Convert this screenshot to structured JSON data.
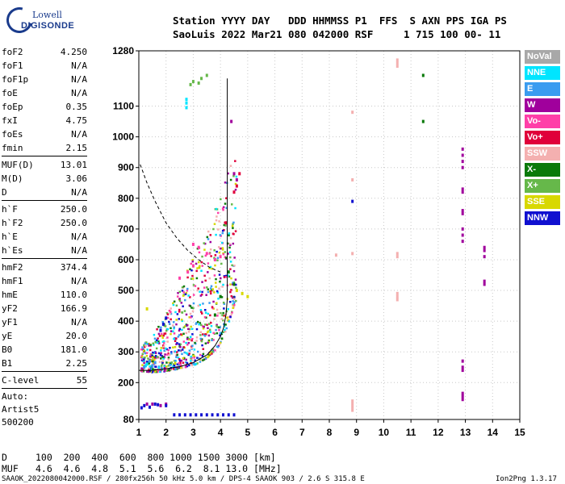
{
  "logo": {
    "line1": "Lowell",
    "line2": "DIGISONDE"
  },
  "header": {
    "line1": "Station YYYY DAY   DDD HHMMSS P1  FFS  S AXN PPS IGA PS",
    "line2": "SaoLuis 2022 Mar21 080 042000 RSF     1 715 100 00- 11"
  },
  "params": {
    "group1": [
      {
        "label": "foF2",
        "value": "4.250"
      },
      {
        "label": "foF1",
        "value": "N/A"
      },
      {
        "label": "foF1p",
        "value": "N/A"
      },
      {
        "label": "foE",
        "value": "N/A"
      },
      {
        "label": "foEp",
        "value": "0.35"
      },
      {
        "label": "fxI",
        "value": "4.75"
      },
      {
        "label": "foEs",
        "value": "N/A"
      },
      {
        "label": "fmin",
        "value": "2.15"
      }
    ],
    "group2": [
      {
        "label": "MUF(D)",
        "value": "13.01"
      },
      {
        "label": "M(D)",
        "value": "3.06"
      },
      {
        "label": "D",
        "value": "N/A"
      }
    ],
    "group3": [
      {
        "label": "h`F",
        "value": "250.0"
      },
      {
        "label": "h`F2",
        "value": "250.0"
      },
      {
        "label": "h`E",
        "value": "N/A"
      },
      {
        "label": "h`Es",
        "value": "N/A"
      }
    ],
    "group4": [
      {
        "label": "hmF2",
        "value": "374.4"
      },
      {
        "label": "hmF1",
        "value": "N/A"
      },
      {
        "label": "hmE",
        "value": "110.0"
      },
      {
        "label": "yF2",
        "value": "166.9"
      },
      {
        "label": "yF1",
        "value": "N/A"
      },
      {
        "label": "yE",
        "value": "20.0"
      },
      {
        "label": "B0",
        "value": "181.0"
      },
      {
        "label": "B1",
        "value": "2.25"
      }
    ],
    "group5": [
      {
        "label": "C-level",
        "value": "55"
      }
    ],
    "auto": [
      "Auto:",
      "Artist5",
      "500200"
    ]
  },
  "legend": [
    {
      "label": "NoVal",
      "color": "#a8a8a8"
    },
    {
      "label": "NNE",
      "color": "#00e5ff"
    },
    {
      "label": "E",
      "color": "#3a9cf0"
    },
    {
      "label": "W",
      "color": "#a0009c"
    },
    {
      "label": "Vo-",
      "color": "#ff3fa8"
    },
    {
      "label": "Vo+",
      "color": "#e0003a"
    },
    {
      "label": "SSW",
      "color": "#f4b0b0"
    },
    {
      "label": "X-",
      "color": "#0a7a0a"
    },
    {
      "label": "X+",
      "color": "#66b84a"
    },
    {
      "label": "SSE",
      "color": "#d8d800"
    },
    {
      "label": "NNW",
      "color": "#1010d0"
    }
  ],
  "bottom": {
    "d_label": "D",
    "d_values": "100  200  400  600  800 1000 1500 3000 [km]",
    "muf_label": "MUF",
    "muf_values": "4.6  4.6  4.8  5.1  5.6  6.2  8.1 13.0 [MHz]",
    "footer_left": "SAAOK_2022080042000.RSF / 280fx256h 50 kHz 5.0 km / DPS-4 SAAOK 903 / 2.6 S 315.8 E",
    "footer_right": "Ion2Png 1.3.17"
  },
  "chart_data": {
    "type": "scatter",
    "xlim": [
      1,
      15
    ],
    "ylim": [
      80,
      1280
    ],
    "x_ticks": [
      1,
      2,
      3,
      4,
      5,
      6,
      7,
      8,
      9,
      10,
      11,
      12,
      13,
      14,
      15
    ],
    "y_ticks": [
      80,
      200,
      300,
      400,
      500,
      600,
      700,
      800,
      900,
      1000,
      1100,
      1280
    ],
    "grid": true,
    "series": [
      {
        "name": "NNE",
        "points": [
          [
            2.75,
            1095
          ],
          [
            2.75,
            1110
          ],
          [
            2.75,
            1122
          ],
          [
            1.25,
            255
          ],
          [
            1.3,
            260
          ]
        ]
      },
      {
        "name": "E",
        "points": [
          [
            1.4,
            270
          ],
          [
            1.6,
            265
          ],
          [
            1.2,
            250
          ],
          [
            1.5,
            255
          ]
        ]
      },
      {
        "name": "W",
        "points": [
          [
            12.9,
            960
          ],
          [
            12.9,
            940
          ],
          [
            12.9,
            920
          ],
          [
            12.9,
            900
          ],
          [
            12.9,
            830
          ],
          [
            12.9,
            820
          ],
          [
            12.9,
            760
          ],
          [
            12.9,
            750
          ],
          [
            12.9,
            700
          ],
          [
            12.9,
            680
          ],
          [
            12.9,
            660
          ],
          [
            12.9,
            270
          ],
          [
            12.9,
            250
          ],
          [
            12.9,
            240
          ],
          [
            12.9,
            165
          ],
          [
            12.9,
            155
          ],
          [
            12.9,
            145
          ],
          [
            13.7,
            640
          ],
          [
            13.7,
            630
          ],
          [
            13.7,
            610
          ],
          [
            13.7,
            530
          ],
          [
            13.7,
            520
          ],
          [
            1.3,
            130
          ],
          [
            1.5,
            130
          ],
          [
            1.8,
            125
          ],
          [
            2.0,
            130
          ],
          [
            4.4,
            1050
          ],
          [
            4.5,
            880
          ],
          [
            4.6,
            860
          ]
        ]
      },
      {
        "name": "Vo-",
        "points": [
          [
            3.0,
            650
          ],
          [
            3.2,
            640
          ],
          [
            3.5,
            620
          ],
          [
            3.8,
            600
          ],
          [
            4.0,
            610
          ],
          [
            2.5,
            540
          ],
          [
            2.8,
            560
          ],
          [
            3.0,
            580
          ]
        ]
      },
      {
        "name": "Vo+",
        "points": [
          [
            4.6,
            840
          ],
          [
            4.7,
            880
          ],
          [
            4.5,
            820
          ],
          [
            4.2,
            720
          ]
        ]
      },
      {
        "name": "SSW",
        "points": [
          [
            10.5,
            1250
          ],
          [
            10.5,
            1240
          ],
          [
            10.5,
            1230
          ],
          [
            10.5,
            620
          ],
          [
            10.5,
            610
          ],
          [
            10.5,
            490
          ],
          [
            10.5,
            480
          ],
          [
            10.5,
            470
          ],
          [
            8.85,
            1080
          ],
          [
            8.85,
            860
          ],
          [
            8.85,
            620
          ],
          [
            8.85,
            140
          ],
          [
            8.85,
            130
          ],
          [
            8.85,
            120
          ],
          [
            8.85,
            110
          ],
          [
            8.25,
            615
          ]
        ]
      },
      {
        "name": "X-",
        "points": [
          [
            11.45,
            1200
          ],
          [
            11.45,
            1050
          ],
          [
            4.3,
            560
          ],
          [
            4.5,
            520
          ],
          [
            4.0,
            480
          ],
          [
            3.8,
            420
          ]
        ]
      },
      {
        "name": "X+",
        "points": [
          [
            2.9,
            1170
          ],
          [
            3.0,
            1180
          ],
          [
            3.3,
            1190
          ],
          [
            3.5,
            1200
          ],
          [
            3.2,
            1175
          ]
        ]
      },
      {
        "name": "SSE",
        "points": [
          [
            4.8,
            490
          ],
          [
            5.0,
            480
          ],
          [
            4.6,
            500
          ],
          [
            1.3,
            440
          ]
        ]
      },
      {
        "name": "NNW",
        "points": [
          [
            1.2,
            125
          ],
          [
            1.4,
            120
          ],
          [
            1.7,
            128
          ],
          [
            2.0,
            125
          ],
          [
            1.1,
            118
          ],
          [
            1.6,
            130
          ],
          [
            2.3,
            95
          ],
          [
            2.5,
            95
          ],
          [
            2.7,
            95
          ],
          [
            2.9,
            95
          ],
          [
            3.1,
            95
          ],
          [
            3.3,
            95
          ],
          [
            3.5,
            95
          ],
          [
            3.7,
            95
          ],
          [
            3.9,
            95
          ],
          [
            4.1,
            95
          ],
          [
            4.3,
            95
          ],
          [
            4.5,
            95
          ],
          [
            1.9,
            390
          ],
          [
            2.0,
            410
          ],
          [
            1.8,
            370
          ],
          [
            8.85,
            790
          ]
        ]
      }
    ],
    "fill_trace": {
      "lower": [
        [
          1.05,
          240
        ],
        [
          1.5,
          237
        ],
        [
          2.0,
          240
        ],
        [
          2.5,
          250
        ],
        [
          3.0,
          260
        ],
        [
          3.5,
          285
        ],
        [
          3.9,
          320
        ],
        [
          4.2,
          380
        ],
        [
          4.5,
          460
        ],
        [
          4.8,
          520
        ],
        [
          4.9,
          600
        ],
        [
          4.85,
          700
        ],
        [
          4.75,
          800
        ],
        [
          4.65,
          900
        ]
      ],
      "upper": [
        [
          1.05,
          320
        ],
        [
          1.5,
          360
        ],
        [
          2.0,
          430
        ],
        [
          2.5,
          520
        ],
        [
          3.0,
          620
        ],
        [
          3.5,
          720
        ],
        [
          4.0,
          820
        ],
        [
          4.3,
          920
        ],
        [
          4.55,
          1000
        ]
      ]
    },
    "profile_curve": [
      [
        1.0,
        240
      ],
      [
        1.5,
        240
      ],
      [
        2.0,
        245
      ],
      [
        2.5,
        252
      ],
      [
        3.0,
        265
      ],
      [
        3.5,
        290
      ],
      [
        3.8,
        320
      ],
      [
        4.0,
        350
      ],
      [
        4.12,
        380
      ],
      [
        4.2,
        420
      ],
      [
        4.25,
        470
      ]
    ],
    "profile_vertical": [
      [
        4.25,
        470
      ],
      [
        4.25,
        1190
      ]
    ],
    "dashed_curve": [
      [
        1.05,
        910
      ],
      [
        1.3,
        850
      ],
      [
        1.6,
        790
      ],
      [
        2.0,
        720
      ],
      [
        2.4,
        670
      ],
      [
        2.8,
        630
      ],
      [
        3.2,
        600
      ],
      [
        3.6,
        575
      ],
      [
        4.0,
        560
      ]
    ]
  }
}
